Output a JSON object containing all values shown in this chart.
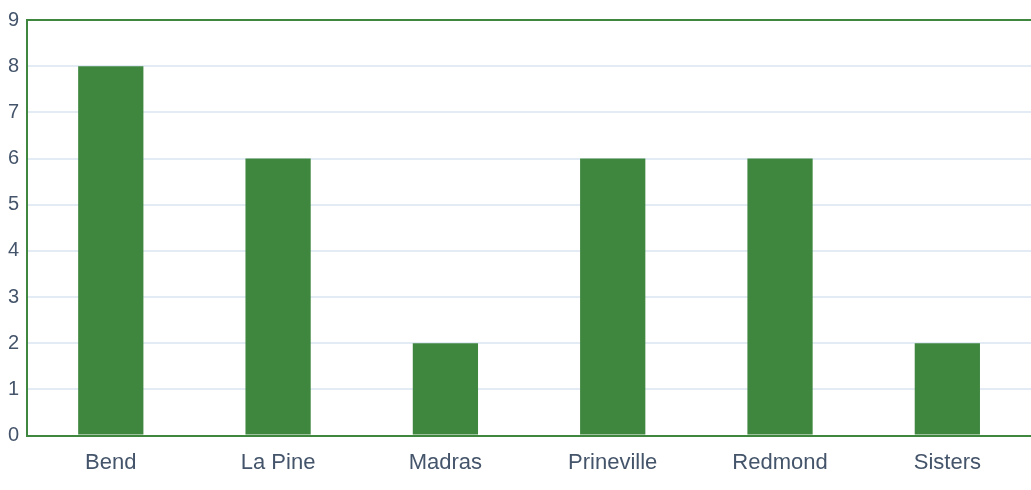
{
  "chart_data": {
    "type": "bar",
    "categories": [
      "Bend",
      "La Pine",
      "Madras",
      "Prineville",
      "Redmond",
      "Sisters"
    ],
    "values": [
      8,
      6,
      2,
      6,
      6,
      2
    ],
    "color": "#3f873f",
    "ylim": [
      0,
      9
    ],
    "yticks": [
      0,
      1,
      2,
      3,
      4,
      5,
      6,
      7,
      8,
      9
    ],
    "grid": "y",
    "legend": false
  }
}
